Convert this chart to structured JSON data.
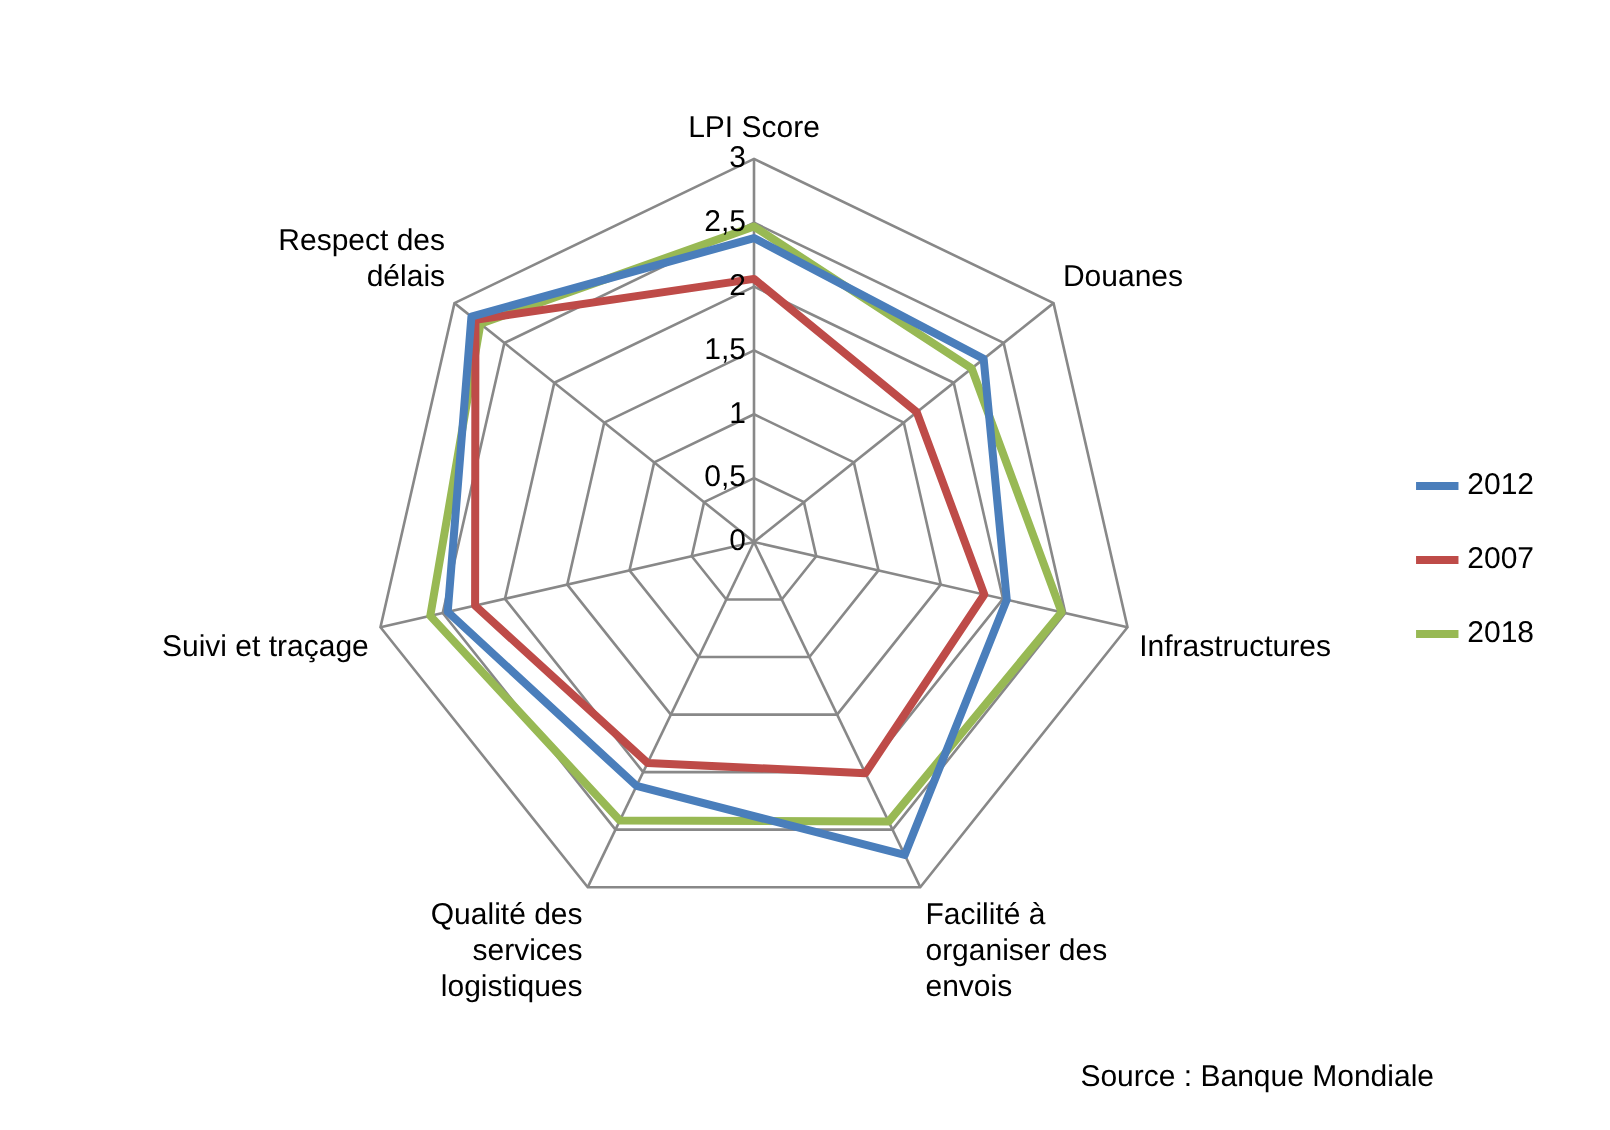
{
  "chart_data": {
    "type": "radar",
    "categories": [
      "LPI Score",
      "Douanes",
      "Infrastructures",
      "Facilité à organiser des envois",
      "Qualité des services logistiques",
      "Suivi et traçage",
      "Respect des délais"
    ],
    "series": [
      {
        "name": "2012",
        "color": "#4a7ebb",
        "values": [
          2.38,
          2.3,
          2.03,
          2.72,
          2.12,
          2.46,
          2.83
        ]
      },
      {
        "name": "2007",
        "color": "#be4b48",
        "values": [
          2.06,
          1.63,
          1.85,
          2.01,
          1.92,
          2.24,
          2.79
        ]
      },
      {
        "name": "2018",
        "color": "#98b954",
        "values": [
          2.47,
          2.18,
          2.47,
          2.43,
          2.42,
          2.6,
          2.74
        ]
      }
    ],
    "ylim": [
      0,
      3
    ],
    "yticks": [
      0,
      {
        "value": 0.5,
        "label": "0,5"
      },
      1,
      {
        "value": 1.5,
        "label": "1,5"
      },
      2,
      {
        "value": 2.5,
        "label": "2,5"
      },
      3
    ],
    "grid": true,
    "legend": "right",
    "marker": "none",
    "line_style": "solid",
    "annotations": [
      "Source : Banque Mondiale"
    ]
  }
}
